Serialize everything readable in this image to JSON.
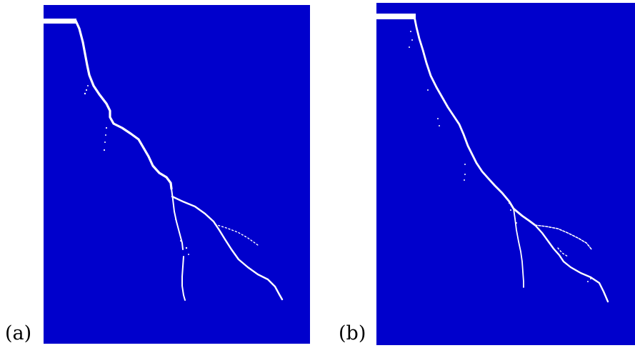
{
  "panels": [
    {
      "id": "a",
      "label": "(a)"
    },
    {
      "id": "b",
      "label": "(b)"
    }
  ],
  "colors": {
    "background": "#0000cc",
    "crack": "#ffffff"
  }
}
